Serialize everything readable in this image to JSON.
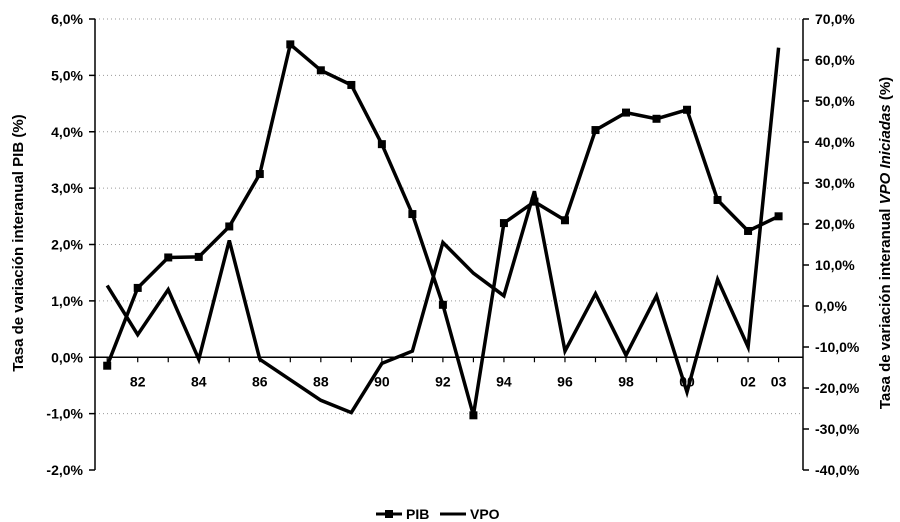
{
  "chart_data": {
    "type": "line",
    "x_tick_labels": [
      "82",
      "84",
      "86",
      "88",
      "90",
      "92",
      "94",
      "96",
      "98",
      "00",
      "02",
      "03"
    ],
    "x_tick_years": [
      1982,
      1984,
      1986,
      1988,
      1990,
      1992,
      1994,
      1996,
      1998,
      2000,
      2002,
      2003
    ],
    "y_left": {
      "label_prefix": "Tasa de variación interanual ",
      "label_em": "",
      "label_suffix": "PIB (%)",
      "ylim": [
        -2.0,
        6.0
      ],
      "tick_values": [
        -2,
        -1,
        0,
        1,
        2,
        3,
        4,
        5,
        6
      ],
      "tick_labels": [
        "-2,0%",
        "-1,0%",
        "0,0%",
        "1,0%",
        "2,0%",
        "3,0%",
        "4,0%",
        "5,0%",
        "6,0%"
      ]
    },
    "y_right": {
      "label_prefix": "Tasa de variación interanual ",
      "label_em": "VPO Iniciadas",
      "label_suffix": " (%)",
      "ylim": [
        -40,
        70
      ],
      "tick_values": [
        -40,
        -30,
        -20,
        -10,
        0,
        10,
        20,
        30,
        40,
        50,
        60,
        70
      ],
      "tick_labels": [
        "-40,0%",
        "-30,0%",
        "-20,0%",
        "-10,0%",
        "0,0%",
        "10,0%",
        "20,0%",
        "30,0%",
        "40,0%",
        "50,0%",
        "60,0%",
        "70,0%"
      ]
    },
    "grid": "horizontal dotted",
    "legend_position": "bottom",
    "series": [
      {
        "name": "PIB",
        "axis": "left",
        "marker": "square",
        "x": [
          1981,
          1982,
          1983,
          1984,
          1985,
          1986,
          1987,
          1988,
          1989,
          1990,
          1991,
          1992,
          1993,
          1994,
          1995,
          1996,
          1997,
          1998,
          1999,
          2000,
          2001,
          2002,
          2003
        ],
        "values": [
          -0.15,
          1.23,
          1.77,
          1.78,
          2.32,
          3.25,
          5.55,
          5.09,
          4.83,
          3.78,
          2.54,
          0.93,
          -1.03,
          2.38,
          2.76,
          2.43,
          4.03,
          4.34,
          4.23,
          4.39,
          2.79,
          2.24,
          2.5
        ]
      },
      {
        "name": "VPO",
        "axis": "right",
        "marker": "none",
        "x": [
          1981,
          1982,
          1983,
          1984,
          1985,
          1986,
          1987,
          1988,
          1989,
          1990,
          1991,
          1992,
          1993,
          1994,
          1995,
          1996,
          1997,
          1998,
          1999,
          2000,
          2001,
          2002,
          2003
        ],
        "values": [
          5,
          -7,
          4,
          -13,
          16,
          -13,
          -18,
          -23,
          -26,
          -14,
          -11,
          15.5,
          8,
          2.5,
          28,
          -11,
          3,
          -12,
          2.5,
          -21,
          6.5,
          -10,
          63
        ]
      }
    ]
  }
}
